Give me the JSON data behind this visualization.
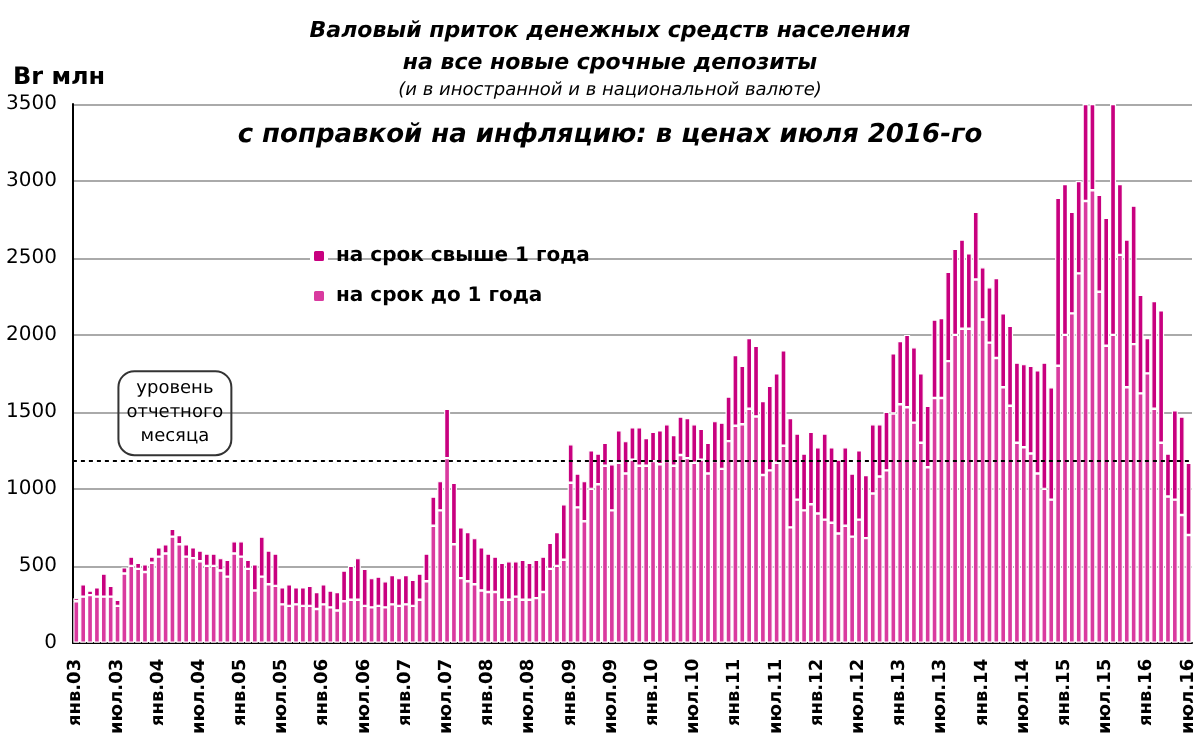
{
  "chart_data": {
    "type": "bar",
    "stacked": true,
    "title": "Валовый приток денежных средств населения\nна все новые срочные депозиты",
    "subtitle": "(и в иностранной и в национальной валюте)",
    "annotations": [
      "с поправкой на инфляцию: в ценах июля 2016-го"
    ],
    "ylabel": "Br млн",
    "categories": [
      "янв.03",
      null,
      null,
      null,
      null,
      null,
      "июл.03",
      null,
      null,
      null,
      null,
      null,
      "янв.04",
      null,
      null,
      null,
      null,
      null,
      "июл.04",
      null,
      null,
      null,
      null,
      null,
      "янв.05",
      null,
      null,
      null,
      null,
      null,
      "июл.05",
      null,
      null,
      null,
      null,
      null,
      "янв.06",
      null,
      null,
      null,
      null,
      null,
      "июл.06",
      null,
      null,
      null,
      null,
      null,
      "янв.07",
      null,
      null,
      null,
      null,
      null,
      "июл.07",
      null,
      null,
      null,
      null,
      null,
      "янв.08",
      null,
      null,
      null,
      null,
      null,
      "июл.08",
      null,
      null,
      null,
      null,
      null,
      "янв.09",
      null,
      null,
      null,
      null,
      null,
      "июл.09",
      null,
      null,
      null,
      null,
      null,
      "янв.10",
      null,
      null,
      null,
      null,
      null,
      "июл.10",
      null,
      null,
      null,
      null,
      null,
      "янв.11",
      null,
      null,
      null,
      null,
      null,
      "июл.11",
      null,
      null,
      null,
      null,
      null,
      "янв.12",
      null,
      null,
      null,
      null,
      null,
      "июл.12",
      null,
      null,
      null,
      null,
      null,
      "янв.13",
      null,
      null,
      null,
      null,
      null,
      "июл.13",
      null,
      null,
      null,
      null,
      null,
      "янв.14",
      null,
      null,
      null,
      null,
      null,
      "июл.14",
      null,
      null,
      null,
      null,
      null,
      "янв.15",
      null,
      null,
      null,
      null,
      null,
      "июл.15",
      null,
      null,
      null,
      null,
      null,
      "янв.16",
      null,
      null,
      null,
      null,
      null,
      "июл.16"
    ],
    "series": [
      {
        "name": "на срок до 1 года",
        "color": "#d93a9f",
        "values": [
          270,
          300,
          310,
          300,
          300,
          300,
          240,
          450,
          500,
          480,
          460,
          520,
          560,
          580,
          690,
          640,
          560,
          550,
          530,
          500,
          500,
          470,
          430,
          580,
          560,
          480,
          340,
          430,
          380,
          370,
          250,
          240,
          250,
          240,
          240,
          220,
          250,
          230,
          210,
          270,
          280,
          280,
          240,
          230,
          240,
          230,
          250,
          240,
          250,
          240,
          280,
          400,
          760,
          860,
          1200,
          640,
          420,
          400,
          380,
          340,
          330,
          330,
          280,
          280,
          300,
          280,
          280,
          290,
          330,
          480,
          500,
          540,
          1040,
          880,
          790,
          1000,
          1030,
          1150,
          860,
          1170,
          1100,
          1190,
          1150,
          1150,
          1180,
          1160,
          1180,
          1150,
          1220,
          1200,
          1170,
          1190,
          1100,
          1180,
          1130,
          1310,
          1410,
          1420,
          1520,
          1470,
          1090,
          1120,
          1170,
          1280,
          750,
          930,
          860,
          900,
          840,
          800,
          780,
          710,
          760,
          690,
          800,
          680,
          970,
          1080,
          1120,
          1490,
          1550,
          1530,
          1430,
          1300,
          1140,
          1590,
          1590,
          1830,
          2000,
          2040,
          2040,
          2360,
          2100,
          1950,
          1850,
          1660,
          1540,
          1300,
          1270,
          1230,
          1100,
          1000,
          930,
          1800,
          2000,
          2140,
          2400,
          2870,
          2940,
          2280,
          1930,
          2000,
          2520,
          1660,
          1940,
          1620,
          1750,
          1520,
          1300,
          950,
          930,
          830,
          700
        ]
      },
      {
        "name": "на срок свыше 1 года",
        "color": "#c8007f",
        "values": [
          20,
          80,
          30,
          60,
          150,
          70,
          40,
          40,
          60,
          40,
          50,
          40,
          60,
          60,
          50,
          60,
          80,
          70,
          70,
          80,
          80,
          80,
          110,
          80,
          100,
          60,
          170,
          260,
          220,
          210,
          110,
          140,
          110,
          120,
          130,
          110,
          130,
          110,
          120,
          200,
          220,
          270,
          240,
          190,
          190,
          170,
          190,
          180,
          190,
          170,
          170,
          180,
          190,
          190,
          320,
          400,
          330,
          320,
          300,
          280,
          250,
          230,
          240,
          250,
          230,
          260,
          240,
          250,
          230,
          170,
          220,
          360,
          250,
          220,
          260,
          250,
          200,
          150,
          300,
          210,
          210,
          210,
          250,
          180,
          190,
          220,
          240,
          200,
          250,
          260,
          250,
          200,
          200,
          260,
          300,
          290,
          460,
          380,
          460,
          460,
          480,
          550,
          580,
          620,
          710,
          430,
          370,
          470,
          430,
          560,
          490,
          480,
          510,
          410,
          450,
          410,
          450,
          340,
          380,
          390,
          410,
          470,
          490,
          450,
          400,
          510,
          520,
          580,
          560,
          580,
          490,
          440,
          340,
          360,
          520,
          480,
          520,
          520,
          540,
          570,
          670,
          820,
          730,
          1090,
          980,
          660,
          600,
          630,
          560,
          630,
          830,
          1500,
          460,
          960,
          900,
          640,
          230,
          700,
          860,
          280,
          580,
          640,
          470
        ]
      }
    ],
    "ylim": [
      0,
      3500
    ],
    "yticks": [
      0,
      500,
      1000,
      1500,
      2000,
      2500,
      3000,
      3500
    ],
    "grid": "y",
    "legend": "top left",
    "ref_lines": [
      {
        "axis": "y",
        "value": 1180,
        "label": "уровень отчетного месяца",
        "color": "#000000",
        "line_style": "dotted"
      }
    ]
  }
}
